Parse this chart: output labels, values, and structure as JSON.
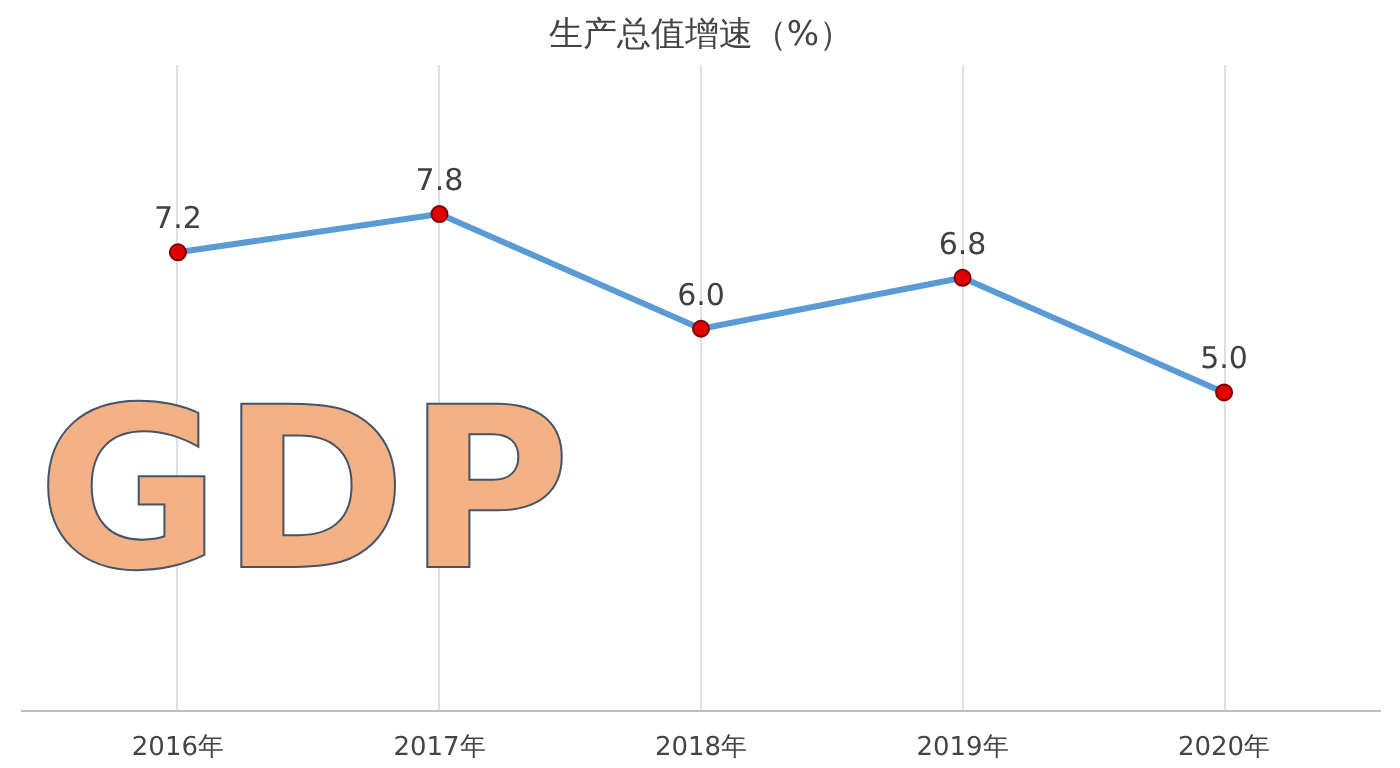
{
  "chart_data": {
    "type": "line",
    "title": "生产总值增速（%）",
    "categories": [
      "2016年",
      "2017年",
      "2018年",
      "2019年",
      "2020年"
    ],
    "series": [
      {
        "color": "#5b9bd5",
        "values": [
          7.2,
          7.8,
          6.0,
          6.8,
          5.0
        ],
        "value_labels": [
          "7.2",
          "7.8",
          "6.0",
          "6.8",
          "5.0"
        ]
      }
    ],
    "marker": "circle",
    "grid": "x",
    "tick_labels": "x",
    "annotations": [
      "GDP"
    ]
  }
}
